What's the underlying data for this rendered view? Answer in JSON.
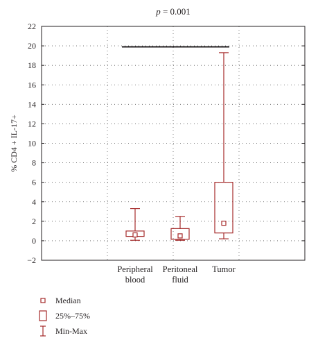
{
  "chart_data": {
    "type": "box",
    "title": "p = 0.001",
    "title_italic_part": "p",
    "ylabel": "% CD4 + IL-17+",
    "xlabel": "",
    "ylim": [
      -2,
      22
    ],
    "yticks": [
      -2,
      0,
      2,
      4,
      6,
      8,
      10,
      12,
      14,
      16,
      18,
      20,
      22
    ],
    "grid": true,
    "categories": [
      {
        "lines": [
          "Peripheral",
          "blood"
        ]
      },
      {
        "lines": [
          "Peritoneal",
          "fluid"
        ]
      },
      {
        "lines": [
          "Tumor"
        ]
      }
    ],
    "boxes": [
      {
        "min": 0.05,
        "q1": 0.45,
        "median": 0.6,
        "q3": 1.0,
        "max": 3.3
      },
      {
        "min": 0.05,
        "q1": 0.15,
        "median": 0.5,
        "q3": 1.25,
        "max": 2.5
      },
      {
        "min": 0.2,
        "q1": 0.8,
        "median": 1.8,
        "q3": 6.0,
        "max": 19.3
      }
    ],
    "significance_bar": {
      "y": 19.9
    },
    "legend": {
      "position": "bottom-left",
      "items": [
        {
          "symbol": "square",
          "label": "Median"
        },
        {
          "symbol": "box",
          "label": "25%–75%"
        },
        {
          "symbol": "whisker",
          "label": "Min-Max"
        }
      ]
    },
    "colors": {
      "box": "#a52a2a",
      "axis": "#231f20",
      "grid": "#555555",
      "sig_bar": "#231f20"
    }
  }
}
